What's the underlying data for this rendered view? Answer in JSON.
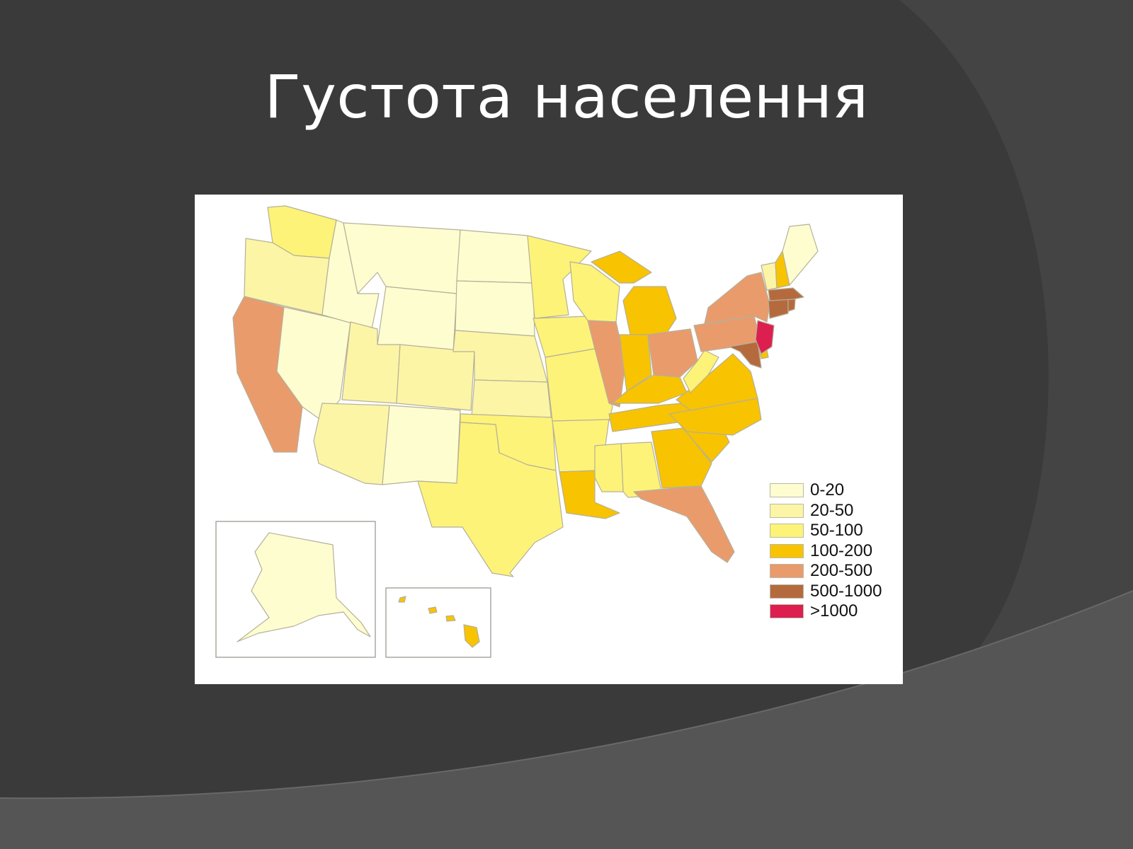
{
  "slide": {
    "title": "Густота населення"
  },
  "theme": {
    "background": "#3a3a3a",
    "swoosh": "#555555",
    "swoosh_line": "#6a6a6a",
    "map_background": "#ffffff",
    "state_border": "#b5b09a"
  },
  "map": {
    "region": "United States",
    "legend": [
      {
        "label": "0-20",
        "color": "#fefdd0"
      },
      {
        "label": "20-50",
        "color": "#fcf5a6"
      },
      {
        "label": "50-100",
        "color": "#fdf378"
      },
      {
        "label": "100-200",
        "color": "#f8c300"
      },
      {
        "label": "200-500",
        "color": "#ea9b6c"
      },
      {
        "label": "500-1000",
        "color": "#b56a3e"
      },
      {
        "label": ">1000",
        "color": "#dd1f4f"
      }
    ],
    "states": [
      {
        "id": "WA",
        "bin": 2
      },
      {
        "id": "OR",
        "bin": 1
      },
      {
        "id": "CA",
        "bin": 4
      },
      {
        "id": "NV",
        "bin": 0
      },
      {
        "id": "ID",
        "bin": 0
      },
      {
        "id": "MT",
        "bin": 0
      },
      {
        "id": "WY",
        "bin": 0
      },
      {
        "id": "UT",
        "bin": 1
      },
      {
        "id": "CO",
        "bin": 1
      },
      {
        "id": "AZ",
        "bin": 1
      },
      {
        "id": "NM",
        "bin": 0
      },
      {
        "id": "ND",
        "bin": 0
      },
      {
        "id": "SD",
        "bin": 0
      },
      {
        "id": "NE",
        "bin": 1
      },
      {
        "id": "KS",
        "bin": 1
      },
      {
        "id": "OK",
        "bin": 2
      },
      {
        "id": "TX",
        "bin": 2
      },
      {
        "id": "MN",
        "bin": 2
      },
      {
        "id": "IA",
        "bin": 2
      },
      {
        "id": "MO",
        "bin": 2
      },
      {
        "id": "AR",
        "bin": 2
      },
      {
        "id": "LA",
        "bin": 3
      },
      {
        "id": "WI",
        "bin": 2
      },
      {
        "id": "IL",
        "bin": 4
      },
      {
        "id": "MI",
        "bin": 3
      },
      {
        "id": "IN",
        "bin": 3
      },
      {
        "id": "OH",
        "bin": 4
      },
      {
        "id": "KY",
        "bin": 3
      },
      {
        "id": "TN",
        "bin": 3
      },
      {
        "id": "MS",
        "bin": 2
      },
      {
        "id": "AL",
        "bin": 2
      },
      {
        "id": "GA",
        "bin": 3
      },
      {
        "id": "FL",
        "bin": 4
      },
      {
        "id": "SC",
        "bin": 3
      },
      {
        "id": "NC",
        "bin": 3
      },
      {
        "id": "VA",
        "bin": 3
      },
      {
        "id": "WV",
        "bin": 2
      },
      {
        "id": "PA",
        "bin": 4
      },
      {
        "id": "NY",
        "bin": 4
      },
      {
        "id": "MD",
        "bin": 5
      },
      {
        "id": "DE",
        "bin": 3
      },
      {
        "id": "NJ",
        "bin": 6
      },
      {
        "id": "CT",
        "bin": 5
      },
      {
        "id": "RI",
        "bin": 5
      },
      {
        "id": "MA",
        "bin": 5
      },
      {
        "id": "VT",
        "bin": 1
      },
      {
        "id": "NH",
        "bin": 3
      },
      {
        "id": "ME",
        "bin": 0
      },
      {
        "id": "AK",
        "bin": 0
      },
      {
        "id": "HI",
        "bin": 3
      }
    ]
  }
}
